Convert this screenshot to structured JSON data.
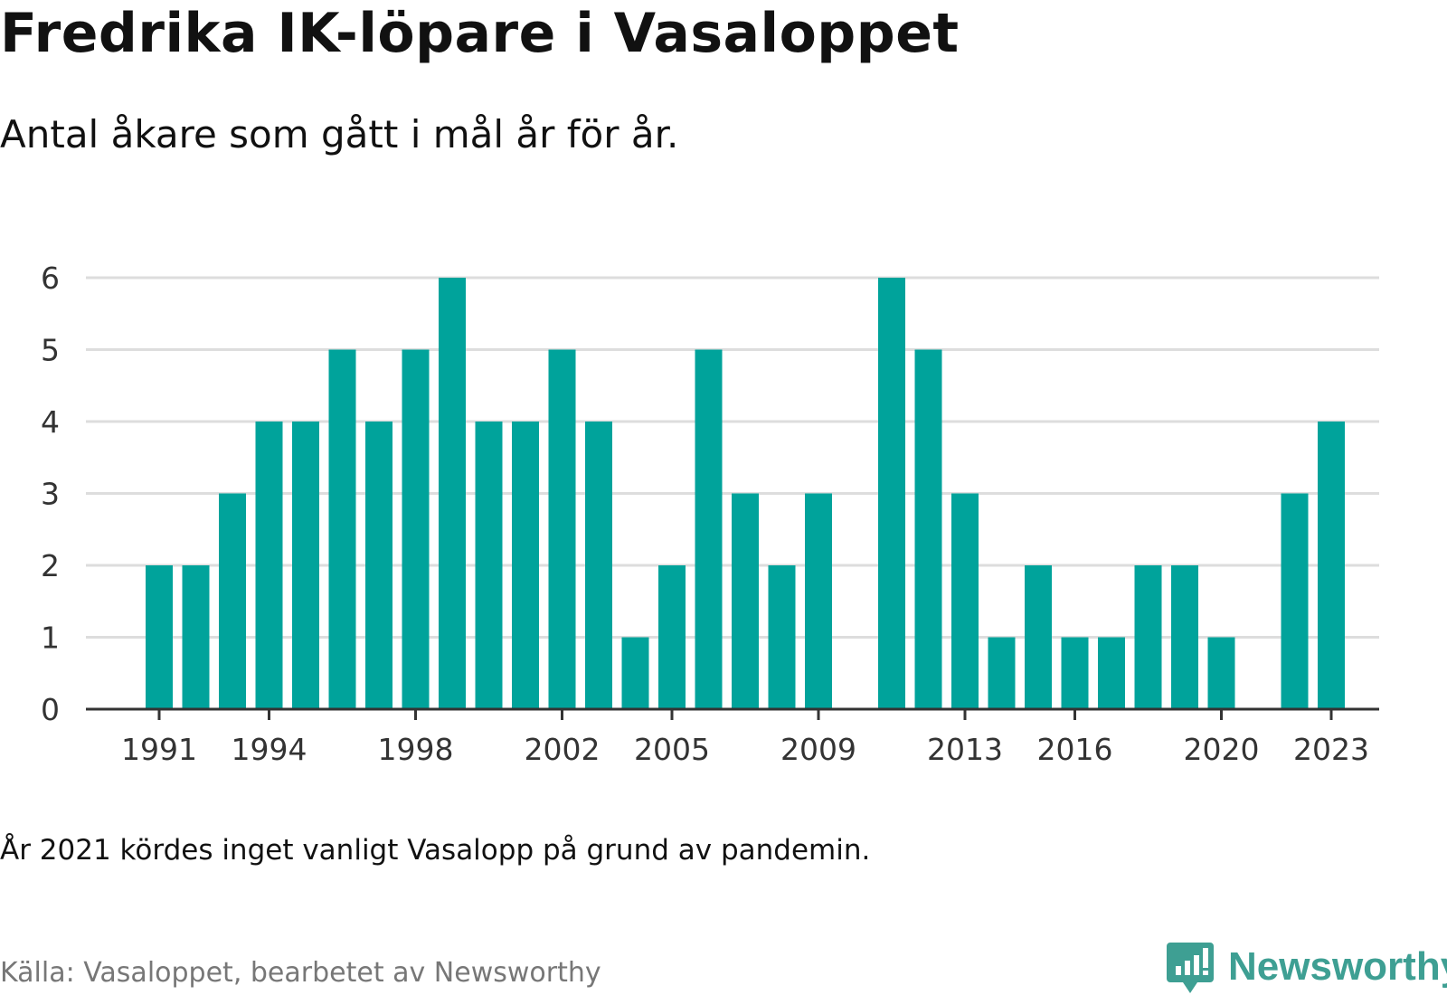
{
  "title": "Fredrika IK-löpare i Vasaloppet",
  "subtitle": "Antal åkare som gått i mål år för år.",
  "note": "År 2021 kördes inget vanligt Vasalopp på grund av pandemin.",
  "source": "Källa: Vasaloppet, bearbetet av Newsworthy",
  "brand": {
    "name": "Newsworthy",
    "color": "#3e9f93",
    "icon": "bar-chart-speech-bubble-icon"
  },
  "colors": {
    "bar": "#00a39b",
    "grid": "#dddddd",
    "axis": "#333333",
    "tick_text": "#333333"
  },
  "chart_data": {
    "type": "bar",
    "title": "Fredrika IK-löpare i Vasaloppet",
    "subtitle": "Antal åkare som gått i mål år för år.",
    "xlabel": "",
    "ylabel": "",
    "x": [
      1991,
      1992,
      1993,
      1994,
      1995,
      1996,
      1997,
      1998,
      1999,
      2000,
      2001,
      2002,
      2003,
      2004,
      2005,
      2006,
      2007,
      2008,
      2009,
      2010,
      2011,
      2012,
      2013,
      2014,
      2015,
      2016,
      2017,
      2018,
      2019,
      2020,
      2021,
      2022,
      2023
    ],
    "values": [
      2,
      2,
      3,
      4,
      4,
      5,
      4,
      5,
      6,
      4,
      4,
      5,
      4,
      1,
      2,
      5,
      3,
      2,
      3,
      0,
      6,
      5,
      3,
      1,
      2,
      1,
      1,
      2,
      2,
      1,
      0,
      3,
      4
    ],
    "x_tick_labels": [
      "1991",
      "1994",
      "1998",
      "2002",
      "2005",
      "2009",
      "2013",
      "2016",
      "2020",
      "2023"
    ],
    "ylim": [
      0,
      6
    ],
    "y_ticks": [
      0,
      1,
      2,
      3,
      4,
      5,
      6
    ],
    "grid": true,
    "legend": "none"
  }
}
